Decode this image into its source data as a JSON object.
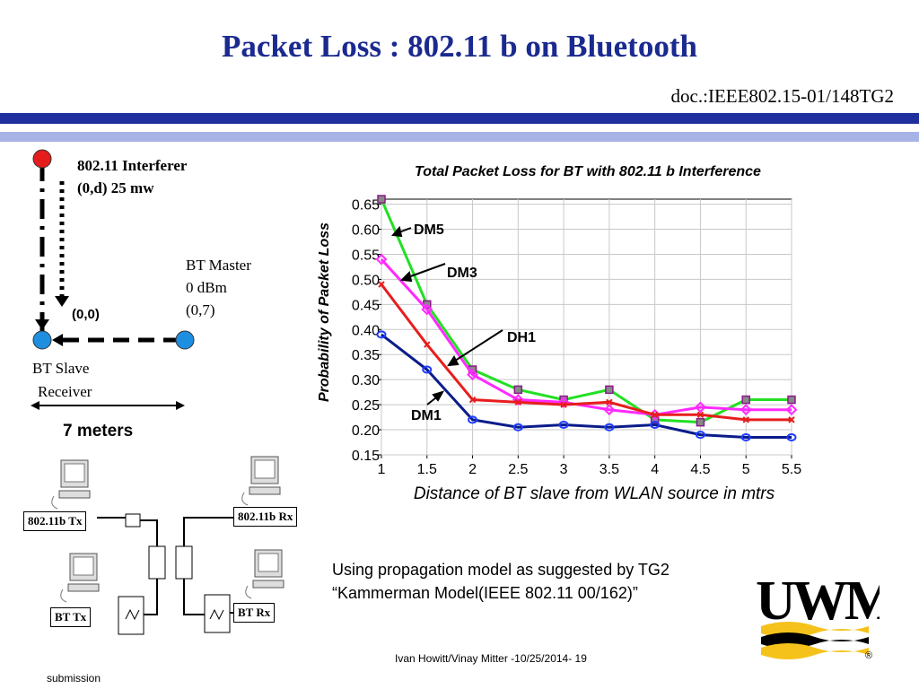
{
  "slide": {
    "title": "Packet Loss  : 802.11 b  on Bluetooth",
    "doc_ref": "doc.:IEEE802.15-01/148TG2",
    "footer": "Ivan Howitt/Vinay Mitter -10/25/2014- 19",
    "submission": "submission",
    "note_line1": "Using propagation model as suggested by TG2",
    "note_line2": "“Kammerman Model(IEEE 802.11 00/162)”",
    "colors": {
      "title": "#1b2a8f",
      "header_bar": "#1f2f9e",
      "header_bar_light": "#a7b2e6"
    }
  },
  "topology": {
    "interferer_label_1": "802.11 Interferer",
    "interferer_label_2": "(0,d)  25 mw",
    "master_label_1": "BT Master",
    "master_label_2": "0 dBm",
    "master_label_3": "(0,7)",
    "origin_label": "(0,0)",
    "slave_label_1": "BT Slave",
    "slave_label_2": "Receiver",
    "distance_label": "7 meters",
    "colors": {
      "interferer": "#e51c1c",
      "bt_node": "#1e8fe0"
    }
  },
  "setup": {
    "tx_80211": "802.11b Tx",
    "rx_80211": "802.11b Rx",
    "bt_tx": "BT Tx",
    "bt_rx": "BT  Rx"
  },
  "logo": {
    "text": "UWM",
    "registered": "®",
    "colors": {
      "text": "#000000",
      "wave": "#f4c21a"
    }
  },
  "chart_data": {
    "type": "line",
    "title": "Total Packet Loss for BT with 802.11 b Interference",
    "xlabel": "Distance of BT slave from WLAN source in mtrs",
    "ylabel": "Probability of Packet Loss",
    "xlim": [
      1,
      5.5
    ],
    "ylim": [
      0.15,
      0.66
    ],
    "x_ticks": [
      "1",
      "1.5",
      "2",
      "2.5",
      "3",
      "3.5",
      "4",
      "4.5",
      "5",
      "5.5"
    ],
    "y_ticks": [
      "0.15",
      "0.20",
      "0.25",
      "0.30",
      "0.35",
      "0.40",
      "0.45",
      "0.50",
      "0.55",
      "0.60",
      "0.65"
    ],
    "grid": true,
    "x": [
      1,
      1.5,
      2,
      2.5,
      3,
      3.5,
      4,
      4.5,
      5,
      5.5
    ],
    "series": [
      {
        "name": "DM5",
        "color": "#22e022",
        "marker": "square",
        "values": [
          0.66,
          0.45,
          0.32,
          0.28,
          0.26,
          0.28,
          0.22,
          0.215,
          0.26,
          0.26
        ]
      },
      {
        "name": "DM3",
        "color": "#ff2aff",
        "marker": "diamond",
        "values": [
          0.54,
          0.44,
          0.31,
          0.26,
          0.255,
          0.24,
          0.23,
          0.245,
          0.24,
          0.24
        ]
      },
      {
        "name": "DH1",
        "color": "#e81d1d",
        "marker": "cross",
        "values": [
          0.49,
          0.37,
          0.26,
          0.255,
          0.25,
          0.255,
          0.23,
          0.23,
          0.22,
          0.22
        ]
      },
      {
        "name": "DM1",
        "color": "#0a1c8a",
        "marker": "circle",
        "values": [
          0.39,
          0.32,
          0.22,
          0.205,
          0.21,
          0.205,
          0.21,
          0.19,
          0.185,
          0.185
        ]
      }
    ]
  }
}
